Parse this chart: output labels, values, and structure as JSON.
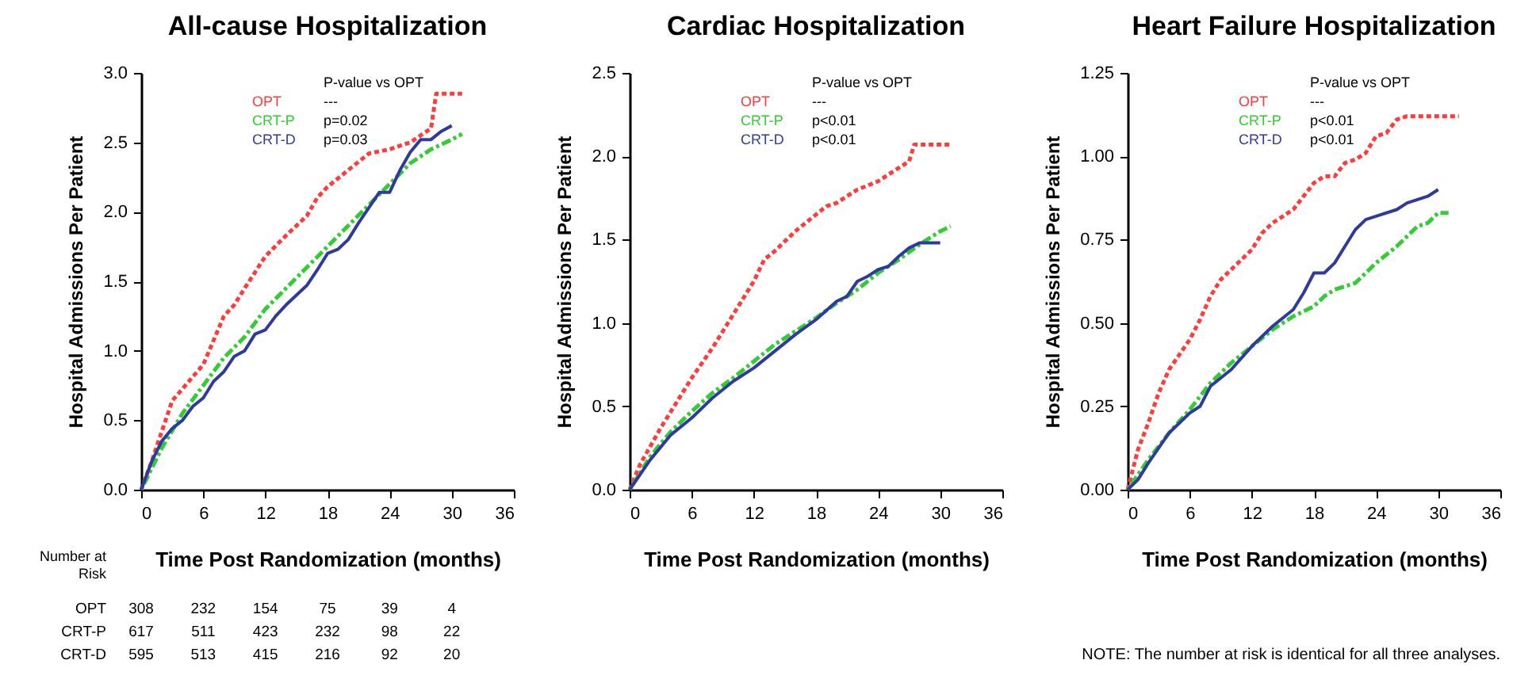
{
  "chart_data": [
    {
      "type": "line",
      "title": "All-cause Hospitalization",
      "xlabel": "Time Post Randomization (months)",
      "ylabel": "Hospital Admissions Per Patient",
      "legend": "top left",
      "xlim": [
        0,
        36
      ],
      "xticks": [
        0,
        6,
        12,
        18,
        24,
        30,
        36
      ],
      "ylim": [
        0,
        3
      ],
      "yticks": [
        {
          "value": 0,
          "label": "0.0"
        },
        0.5,
        {
          "value": 1,
          "label": "1.0"
        },
        1.5,
        {
          "value": 2,
          "label": "2.0"
        },
        2.5,
        {
          "value": 3,
          "label": "3.0"
        }
      ],
      "series": [
        {
          "name": "OPT",
          "color": "#ff3b3b",
          "line_style": "dashed",
          "x": [
            0,
            1,
            3,
            6,
            8,
            9,
            10,
            12,
            14,
            15,
            16,
            17,
            18,
            20,
            22,
            24,
            26,
            28,
            28.5,
            31
          ],
          "values": [
            0,
            0.2,
            0.64,
            0.9,
            1.25,
            1.33,
            1.45,
            1.68,
            1.83,
            1.9,
            1.97,
            2.1,
            2.18,
            2.3,
            2.42,
            2.45,
            2.5,
            2.6,
            2.85,
            2.85
          ]
        },
        {
          "name": "CRT-P",
          "color": "#33cc33",
          "line_style": "dotted",
          "x": [
            0,
            2,
            4,
            6,
            8,
            10,
            12,
            14,
            16,
            18,
            20,
            22,
            24,
            26,
            28,
            30,
            31
          ],
          "values": [
            0,
            0.3,
            0.55,
            0.75,
            0.95,
            1.1,
            1.3,
            1.45,
            1.6,
            1.75,
            1.9,
            2.05,
            2.2,
            2.35,
            2.45,
            2.52,
            2.56
          ]
        },
        {
          "name": "CRT-D",
          "color": "#2e3a9c",
          "line_style": "solid",
          "x": [
            0,
            1,
            2,
            3,
            4,
            5,
            6,
            7,
            8,
            9,
            10,
            11,
            12,
            13,
            14,
            15,
            16,
            17,
            18,
            19,
            20,
            21,
            22,
            23,
            24,
            25,
            26,
            27,
            28,
            29,
            30
          ],
          "values": [
            0,
            0.2,
            0.35,
            0.44,
            0.5,
            0.6,
            0.66,
            0.78,
            0.85,
            0.96,
            1.0,
            1.12,
            1.15,
            1.25,
            1.33,
            1.4,
            1.47,
            1.58,
            1.7,
            1.73,
            1.8,
            1.92,
            2.03,
            2.14,
            2.14,
            2.3,
            2.43,
            2.52,
            2.52,
            2.58,
            2.62
          ]
        }
      ],
      "annotations": [
        "P-value vs OPT",
        "---",
        "p=0.02",
        "p=0.03",
        "Number at Risk",
        "OPT",
        "308",
        "232",
        "154",
        "75",
        "39",
        "4",
        "CRT-P",
        "617",
        "511",
        "423",
        "232",
        "98",
        "22",
        "CRT-D",
        "595",
        "513",
        "415",
        "216",
        "92",
        "20"
      ]
    },
    {
      "type": "line",
      "title": "Cardiac Hospitalization",
      "xlabel": "Time Post Randomization (months)",
      "ylabel": "Hospital Admissions Per Patient",
      "legend": "top left",
      "xlim": [
        0,
        36
      ],
      "xticks": [
        0,
        6,
        12,
        18,
        24,
        30,
        36
      ],
      "ylim": [
        0,
        2.5
      ],
      "yticks": [
        {
          "value": 0,
          "label": "0.0"
        },
        0.5,
        {
          "value": 1,
          "label": "1.0"
        },
        1.5,
        {
          "value": 2,
          "label": "2.0"
        },
        2.5
      ],
      "series": [
        {
          "name": "OPT",
          "color": "#ff3b3b",
          "line_style": "dashed",
          "x": [
            0,
            1,
            3,
            5,
            6,
            8,
            10,
            12,
            13,
            14,
            16,
            18,
            19,
            20,
            22,
            24,
            26,
            27,
            27.5,
            31
          ],
          "values": [
            0,
            0.15,
            0.37,
            0.57,
            0.67,
            0.85,
            1.05,
            1.25,
            1.38,
            1.43,
            1.55,
            1.65,
            1.7,
            1.72,
            1.8,
            1.85,
            1.93,
            1.97,
            2.07,
            2.07
          ]
        },
        {
          "name": "CRT-P",
          "color": "#33cc33",
          "line_style": "dotted",
          "x": [
            0,
            2,
            4,
            6,
            8,
            10,
            12,
            14,
            16,
            18,
            20,
            22,
            24,
            26,
            28,
            30,
            31
          ],
          "values": [
            0,
            0.2,
            0.35,
            0.47,
            0.58,
            0.67,
            0.77,
            0.87,
            0.95,
            1.03,
            1.12,
            1.2,
            1.3,
            1.38,
            1.47,
            1.55,
            1.58
          ]
        },
        {
          "name": "CRT-D",
          "color": "#2e3a9c",
          "line_style": "solid",
          "x": [
            0,
            2,
            4,
            6,
            8,
            10,
            12,
            14,
            16,
            18,
            20,
            21,
            22,
            23,
            24,
            25,
            26,
            27,
            28,
            30
          ],
          "values": [
            0,
            0.18,
            0.33,
            0.43,
            0.55,
            0.65,
            0.73,
            0.83,
            0.93,
            1.02,
            1.13,
            1.16,
            1.25,
            1.28,
            1.32,
            1.34,
            1.4,
            1.45,
            1.48,
            1.48
          ]
        }
      ],
      "annotations": [
        "P-value vs OPT",
        "---",
        "p<0.01",
        "p<0.01"
      ]
    },
    {
      "type": "line",
      "title": "Heart Failure Hospitalization",
      "xlabel": "Time Post Randomization (months)",
      "ylabel": "Hospital Admissions Per Patient",
      "legend": "top left",
      "xlim": [
        0,
        36
      ],
      "xticks": [
        0,
        6,
        12,
        18,
        24,
        30,
        36
      ],
      "ylim": [
        0,
        1.25
      ],
      "yticks": [
        {
          "value": 0,
          "label": "0.00"
        },
        0.25,
        {
          "value": 0.5,
          "label": "0.50"
        },
        0.75,
        {
          "value": 1,
          "label": "1.00"
        },
        1.25
      ],
      "series": [
        {
          "name": "OPT",
          "color": "#ff3b3b",
          "line_style": "dashed",
          "x": [
            0,
            1,
            2,
            3,
            4,
            6,
            7,
            8,
            9,
            10,
            12,
            13,
            14,
            16,
            18,
            19,
            20,
            21,
            22,
            23,
            24,
            25,
            26,
            27,
            32
          ],
          "values": [
            0,
            0.12,
            0.2,
            0.29,
            0.36,
            0.45,
            0.51,
            0.58,
            0.63,
            0.66,
            0.72,
            0.77,
            0.8,
            0.84,
            0.92,
            0.94,
            0.94,
            0.98,
            0.99,
            1.01,
            1.06,
            1.07,
            1.11,
            1.12,
            1.12
          ]
        },
        {
          "name": "CRT-P",
          "color": "#33cc33",
          "line_style": "dotted",
          "x": [
            0,
            2,
            4,
            6,
            8,
            10,
            12,
            14,
            16,
            18,
            19,
            20,
            22,
            24,
            26,
            28,
            29,
            30,
            31
          ],
          "values": [
            0,
            0.09,
            0.17,
            0.24,
            0.32,
            0.38,
            0.43,
            0.48,
            0.52,
            0.55,
            0.58,
            0.6,
            0.62,
            0.68,
            0.73,
            0.79,
            0.8,
            0.83,
            0.83
          ]
        },
        {
          "name": "CRT-D",
          "color": "#2e3a9c",
          "line_style": "solid",
          "x": [
            0,
            1,
            2,
            4,
            6,
            7,
            8,
            10,
            12,
            14,
            16,
            17,
            18,
            19,
            20,
            21,
            22,
            23,
            24,
            26,
            27,
            28,
            29,
            30
          ],
          "values": [
            0,
            0.03,
            0.08,
            0.17,
            0.23,
            0.25,
            0.31,
            0.36,
            0.43,
            0.49,
            0.54,
            0.59,
            0.65,
            0.65,
            0.68,
            0.73,
            0.78,
            0.81,
            0.82,
            0.84,
            0.86,
            0.87,
            0.88,
            0.9
          ]
        }
      ],
      "annotations": [
        "P-value vs OPT",
        "---",
        "p<0.01",
        "p<0.01",
        "NOTE:  The number at risk is identical for all three analyses."
      ]
    }
  ]
}
